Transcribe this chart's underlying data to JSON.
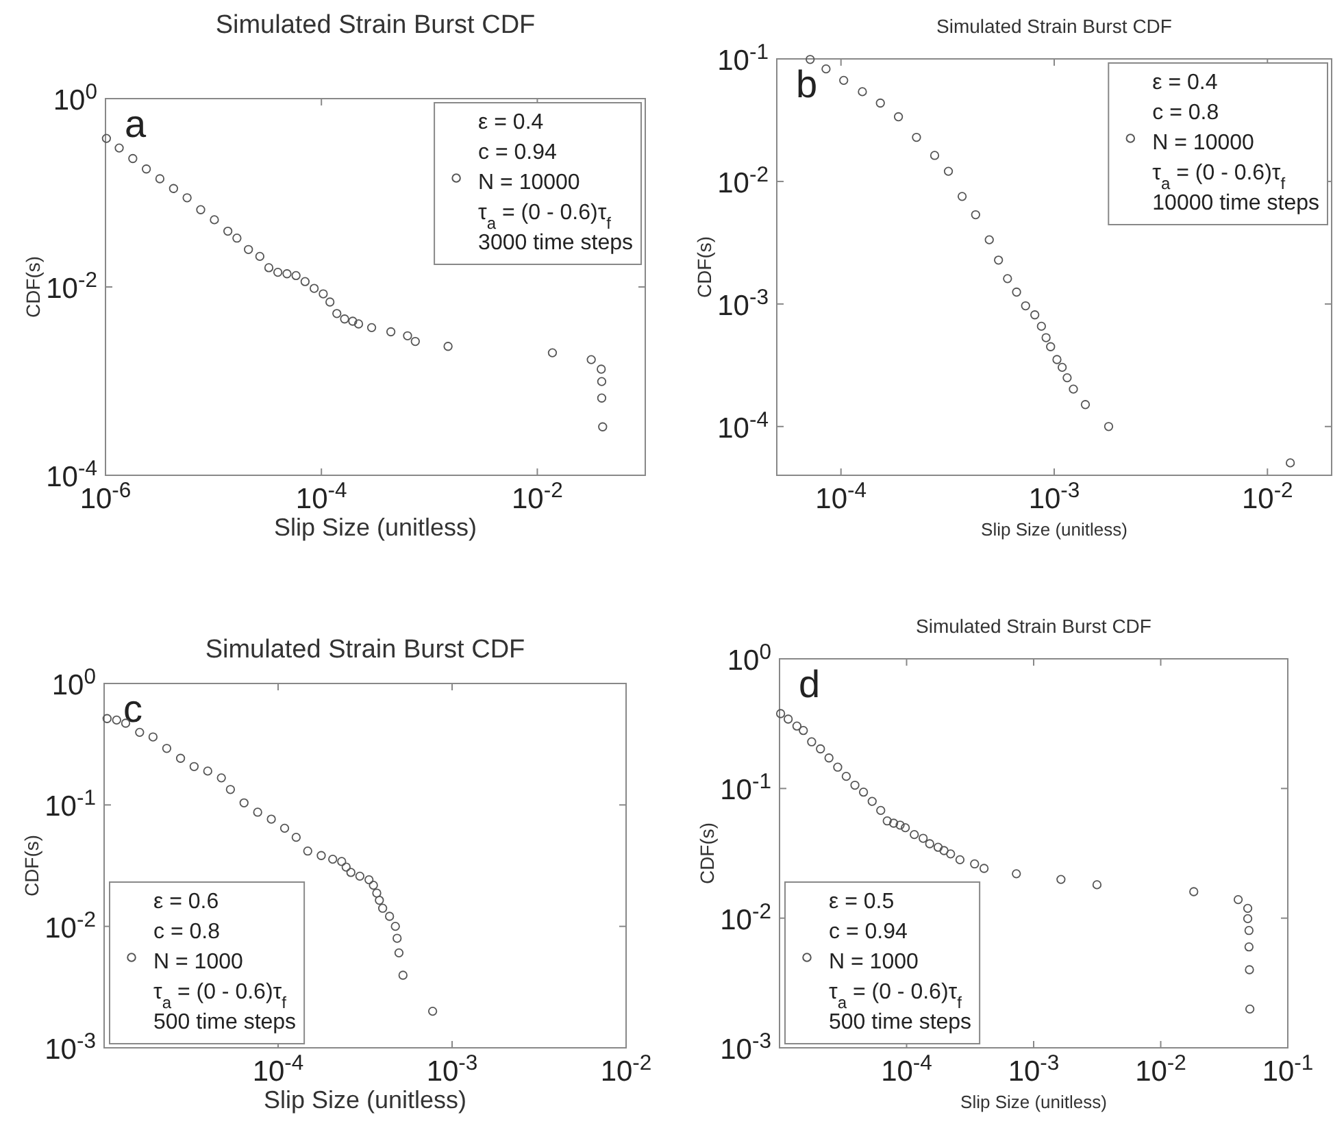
{
  "chart_data": [
    {
      "type": "scatter",
      "title": "Simulated Strain Burst CDF",
      "xlabel": "Slip Size (unitless)",
      "ylabel": "CDF(s)",
      "log": "xy",
      "marker": "circle",
      "legend": "top right",
      "annotations": [
        "a"
      ],
      "xlim": [
        1e-06,
        0.1
      ],
      "ylim": [
        0.0001,
        1
      ],
      "xticks": [
        {
          "value": 1e-06,
          "label": "10$^{-6}$"
        },
        {
          "value": 0.0001,
          "label": "10$^{-4}$"
        },
        {
          "value": 0.01,
          "label": "10$^{-2}$"
        }
      ],
      "yticks": [
        {
          "value": 0.0001,
          "label": "10$^{-4}$"
        },
        {
          "value": 0.01,
          "label": "10$^{-2}$"
        },
        {
          "value": 1,
          "label": "10$^{0}$"
        }
      ],
      "series": [
        {
          "name": "ε = 0.4\nc = 0.94\nN = 10000\nτ$_{a}$ = (0 - 0.6)τ$_{f}$\n3000 time steps",
          "color": "#555555",
          "x": [
            1.02e-06,
            1.34e-06,
            1.79e-06,
            2.39e-06,
            3.19e-06,
            4.27e-06,
            5.7e-06,
            7.62e-06,
            1.02e-05,
            1.36e-05,
            1.65e-05,
            2.11e-05,
            2.69e-05,
            3.26e-05,
            3.95e-05,
            4.8e-05,
            5.82e-05,
            7.06e-05,
            8.57e-05,
            0.000104,
            0.00012,
            0.000139,
            0.000164,
            0.000195,
            0.000221,
            0.000292,
            0.00044,
            0.000628,
            0.000741,
            0.00149,
            0.0138,
            0.0316,
            0.0391,
            0.0395,
            0.0395,
            0.0403
          ],
          "values": [
            0.378,
            0.299,
            0.231,
            0.179,
            0.141,
            0.111,
            0.0885,
            0.0661,
            0.0517,
            0.0391,
            0.033,
            0.025,
            0.0211,
            0.016,
            0.0143,
            0.0138,
            0.0132,
            0.0114,
            0.00966,
            0.00845,
            0.00692,
            0.00522,
            0.00457,
            0.00433,
            0.00405,
            0.0037,
            0.00334,
            0.00303,
            0.00264,
            0.00234,
            0.002,
            0.00169,
            0.00134,
            0.000989,
            0.000661,
            0.000327
          ]
        }
      ]
    },
    {
      "type": "scatter",
      "title": "Simulated Strain Burst CDF",
      "xlabel": "Slip Size (unitless)",
      "ylabel": "CDF(s)",
      "log": "xy",
      "marker": "circle",
      "legend": "top right",
      "annotations": [
        "b"
      ],
      "xlim": [
        5e-05,
        0.02
      ],
      "ylim": [
        4e-05,
        0.1
      ],
      "xticks": [
        {
          "value": 0.0001,
          "label": "10$^{-4}$"
        },
        {
          "value": 0.001,
          "label": "10$^{-3}$"
        },
        {
          "value": 0.01,
          "label": "10$^{-2}$"
        }
      ],
      "yticks": [
        {
          "value": 0.0001,
          "label": "10$^{-4}$"
        },
        {
          "value": 0.001,
          "label": "10$^{-3}$"
        },
        {
          "value": 0.01,
          "label": "10$^{-2}$"
        },
        {
          "value": 0.1,
          "label": "10$^{-1}$"
        }
      ],
      "series": [
        {
          "name": "ε = 0.4\nc = 0.8\nN = 10000\nτ$_{a}$ = (0 - 0.6)τ$_{f}$\n10000 time steps",
          "color": "#555555",
          "x": [
            7.17e-05,
            8.51e-05,
            0.000103,
            0.000126,
            0.000153,
            0.000186,
            0.000226,
            0.000275,
            0.000319,
            0.00037,
            0.000428,
            0.000496,
            0.000548,
            0.000604,
            0.000666,
            0.000734,
            0.000811,
            0.000871,
            0.000916,
            0.000962,
            0.00103,
            0.00109,
            0.00115,
            0.00123,
            0.0014,
            0.0018,
            0.0128
          ],
          "values": [
            0.099,
            0.0828,
            0.0668,
            0.054,
            0.0436,
            0.0337,
            0.0229,
            0.0163,
            0.0121,
            0.00754,
            0.00535,
            0.00334,
            0.00228,
            0.00161,
            0.00125,
            0.000966,
            0.000815,
            0.000658,
            0.000531,
            0.000448,
            0.000352,
            0.000304,
            0.00025,
            0.000202,
            0.000151,
            0.0001,
            5.05e-05
          ]
        }
      ]
    },
    {
      "type": "scatter",
      "title": "Simulated Strain Burst CDF",
      "xlabel": "Slip Size (unitless)",
      "ylabel": "CDF(s)",
      "log": "xy",
      "marker": "circle",
      "legend": "bottom left",
      "annotations": [
        "c"
      ],
      "xlim": [
        1e-05,
        0.01
      ],
      "ylim": [
        0.001,
        1
      ],
      "xticks": [
        {
          "value": 0.0001,
          "label": "10$^{-4}$"
        },
        {
          "value": 0.001,
          "label": "10$^{-3}$"
        },
        {
          "value": 0.01,
          "label": "10$^{-2}$"
        }
      ],
      "yticks": [
        {
          "value": 0.001,
          "label": "10$^{-3}$"
        },
        {
          "value": 0.01,
          "label": "10$^{-2}$"
        },
        {
          "value": 0.1,
          "label": "10$^{-1}$"
        },
        {
          "value": 1,
          "label": "10$^{0}$"
        }
      ],
      "series": [
        {
          "name": "ε = 0.6\nc = 0.8\nN = 1000\nτ$_{a}$ = (0 - 0.6)τ$_{f}$\n500 time steps",
          "color": "#555555",
          "x": [
            1.04e-05,
            1.18e-05,
            1.33e-05,
            1.6e-05,
            1.91e-05,
            2.29e-05,
            2.75e-05,
            3.29e-05,
            3.94e-05,
            4.72e-05,
            5.32e-05,
            6.37e-05,
            7.63e-05,
            9.14e-05,
            0.000109,
            0.000127,
            0.000148,
            0.000177,
            0.000206,
            0.000232,
            0.000246,
            0.000262,
            0.000295,
            0.000333,
            0.000353,
            0.000369,
            0.000382,
            0.000399,
            0.000437,
            0.000472,
            0.000483,
            0.000495,
            0.000522,
            0.000773
          ],
          "values": [
            0.514,
            0.5,
            0.471,
            0.396,
            0.363,
            0.292,
            0.242,
            0.207,
            0.19,
            0.167,
            0.134,
            0.104,
            0.0871,
            0.0764,
            0.0643,
            0.0541,
            0.0417,
            0.0383,
            0.0357,
            0.0342,
            0.0308,
            0.0278,
            0.0259,
            0.0242,
            0.0218,
            0.0188,
            0.0164,
            0.0141,
            0.0121,
            0.01,
            0.00798,
            0.00605,
            0.00396,
            0.002
          ]
        }
      ]
    },
    {
      "type": "scatter",
      "title": "Simulated Strain Burst CDF",
      "xlabel": "Slip Size (unitless)",
      "ylabel": "CDF(s)",
      "log": "xy",
      "marker": "circle",
      "legend": "bottom left",
      "annotations": [
        "d"
      ],
      "xlim": [
        1e-05,
        0.1
      ],
      "ylim": [
        0.001,
        1
      ],
      "xticks": [
        {
          "value": 0.0001,
          "label": "10$^{-4}$"
        },
        {
          "value": 0.001,
          "label": "10$^{-3}$"
        },
        {
          "value": 0.01,
          "label": "10$^{-2}$"
        },
        {
          "value": 0.1,
          "label": "10$^{-1}$"
        }
      ],
      "yticks": [
        {
          "value": 0.001,
          "label": "10$^{-3}$"
        },
        {
          "value": 0.01,
          "label": "10$^{-2}$"
        },
        {
          "value": 0.1,
          "label": "10$^{-1}$"
        },
        {
          "value": 1,
          "label": "10$^{0}$"
        }
      ],
      "series": [
        {
          "name": "ε = 0.5\nc = 0.94\nN = 1000\nτ$_{a}$ = (0 - 0.6)τ$_{f}$\n500 time steps",
          "color": "#555555",
          "x": [
            1.02e-05,
            1.17e-05,
            1.37e-05,
            1.54e-05,
            1.79e-05,
            2.1e-05,
            2.45e-05,
            2.87e-05,
            3.35e-05,
            3.92e-05,
            4.58e-05,
            5.36e-05,
            6.26e-05,
            7.04e-05,
            7.91e-05,
            8.89e-05,
            9.77e-05,
            0.000115,
            0.000135,
            0.000152,
            0.000177,
            0.000197,
            0.000222,
            0.000263,
            0.000343,
            0.000407,
            0.000731,
            0.00164,
            0.00315,
            0.0182,
            0.0407,
            0.0484,
            0.0484,
            0.0495,
            0.0495,
            0.0499,
            0.0503
          ],
          "values": [
            0.378,
            0.343,
            0.303,
            0.28,
            0.229,
            0.202,
            0.172,
            0.146,
            0.124,
            0.106,
            0.0937,
            0.0796,
            0.0677,
            0.0562,
            0.054,
            0.0522,
            0.0498,
            0.0441,
            0.0413,
            0.0375,
            0.0352,
            0.0332,
            0.0313,
            0.0282,
            0.0262,
            0.0242,
            0.022,
            0.0199,
            0.0181,
            0.016,
            0.0139,
            0.0119,
            0.00991,
            0.00803,
            0.006,
            0.004,
            0.00199
          ]
        }
      ]
    }
  ]
}
